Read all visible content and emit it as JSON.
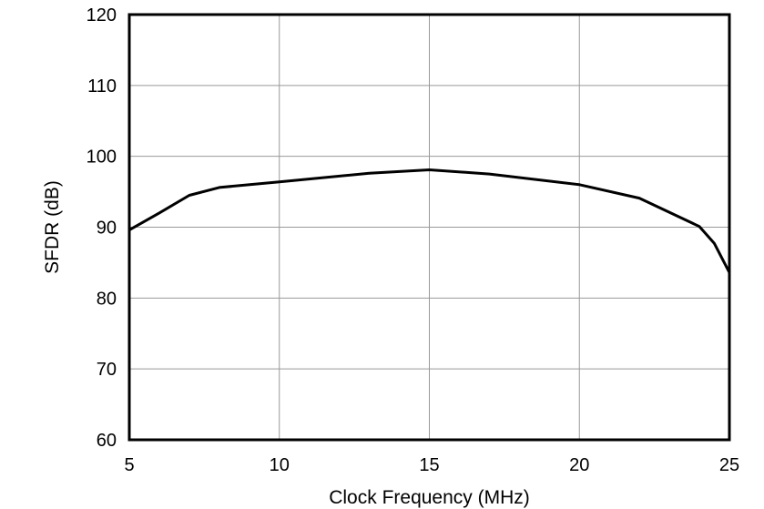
{
  "chart_data": {
    "type": "line",
    "title": "",
    "xlabel": "Clock Frequency (MHz)",
    "ylabel": "SFDR (dB)",
    "xlim": [
      5,
      25
    ],
    "ylim": [
      60,
      120
    ],
    "xticks": [
      5,
      10,
      15,
      20,
      25
    ],
    "yticks": [
      60,
      70,
      80,
      90,
      100,
      110,
      120
    ],
    "grid": true,
    "legend": null,
    "series": [
      {
        "name": "SFDR",
        "color": "#000000",
        "x": [
          5,
          6,
          7,
          8,
          10,
          13,
          15,
          17,
          20,
          22,
          24,
          24.5,
          25
        ],
        "y": [
          89.6,
          92.0,
          94.5,
          95.6,
          96.4,
          97.6,
          98.1,
          97.5,
          96.0,
          94.1,
          90.1,
          87.7,
          83.6
        ]
      }
    ]
  },
  "colors": {
    "axis": "#000000",
    "grid": "#999999",
    "line": "#000000",
    "background": "#ffffff"
  }
}
